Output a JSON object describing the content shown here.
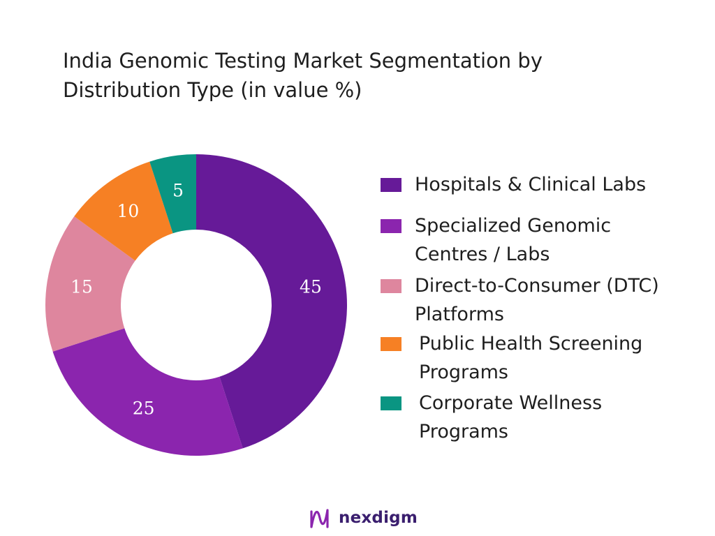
{
  "title_lines": [
    "India Genomic Testing Market Segmentation by",
    "Distribution Type (in value %)"
  ],
  "chart_data": {
    "type": "pie",
    "subtype": "donut",
    "title": "India Genomic Testing Market Segmentation by Distribution Type (in value %)",
    "categories": [
      "Hospitals & Clinical Labs",
      "Specialized Genomic Centres / Labs",
      "Direct-to-Consumer (DTC) Platforms",
      "Public Health Screening Programs",
      "Corporate Wellness Programs"
    ],
    "values": [
      45,
      25,
      15,
      10,
      5
    ],
    "colors": [
      "#661a98",
      "#8b25ae",
      "#de869e",
      "#f68024",
      "#0a9582"
    ],
    "legend_position": "right"
  },
  "legend": [
    {
      "lines": [
        "Hospitals & Clinical Labs"
      ],
      "color": "#661a98"
    },
    {
      "lines": [
        "Specialized Genomic",
        "Centres / Labs"
      ],
      "color": "#8b25ae"
    },
    {
      "lines": [
        "Direct-to-Consumer (DTC)",
        "Platforms"
      ],
      "color": "#de869e"
    },
    {
      "lines": [
        "Public Health Screening",
        "Programs"
      ],
      "color": "#f68024"
    },
    {
      "lines": [
        "Corporate Wellness",
        "Programs"
      ],
      "color": "#0a9582"
    }
  ],
  "brand": {
    "name": "nexdigm",
    "logo": "nexdigm-wave-icon",
    "logo_color": "#8b25ae"
  }
}
